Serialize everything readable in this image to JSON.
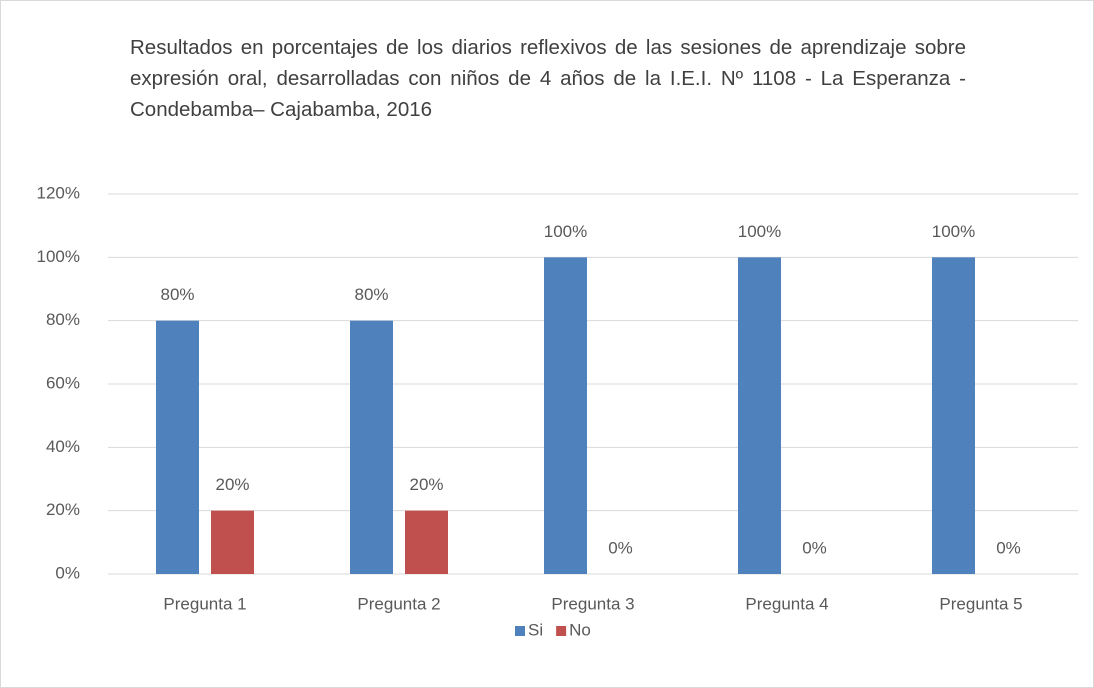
{
  "chart_data": {
    "type": "bar",
    "title": "Resultados en porcentajes de los diarios reflexivos de las sesiones de aprendizaje sobre expresión oral, desarrolladas con niños de 4 años de la I.E.I. Nº 1108 - La Esperanza - Condebamba– Cajabamba, 2016",
    "categories": [
      "Pregunta 1",
      "Pregunta 2",
      "Pregunta 3",
      "Pregunta 4",
      "Pregunta 5"
    ],
    "series": [
      {
        "name": "Si",
        "color": "#4f81bd",
        "values": [
          80,
          80,
          100,
          100,
          100
        ],
        "value_labels": [
          "80%",
          "80%",
          "100%",
          "100%",
          "100%"
        ]
      },
      {
        "name": "No",
        "color": "#c0504d",
        "values": [
          20,
          20,
          0,
          0,
          0
        ],
        "value_labels": [
          "20%",
          "20%",
          "0%",
          "0%",
          "0%"
        ]
      }
    ],
    "ylim": [
      0,
      120
    ],
    "yticks": [
      {
        "value": 0,
        "label": "0%"
      },
      {
        "value": 20,
        "label": "20%"
      },
      {
        "value": 40,
        "label": "40%"
      },
      {
        "value": 60,
        "label": "60%"
      },
      {
        "value": 80,
        "label": "80%"
      },
      {
        "value": 100,
        "label": "100%"
      },
      {
        "value": 120,
        "label": "120%"
      }
    ],
    "grid": true,
    "legend": "bottom"
  }
}
